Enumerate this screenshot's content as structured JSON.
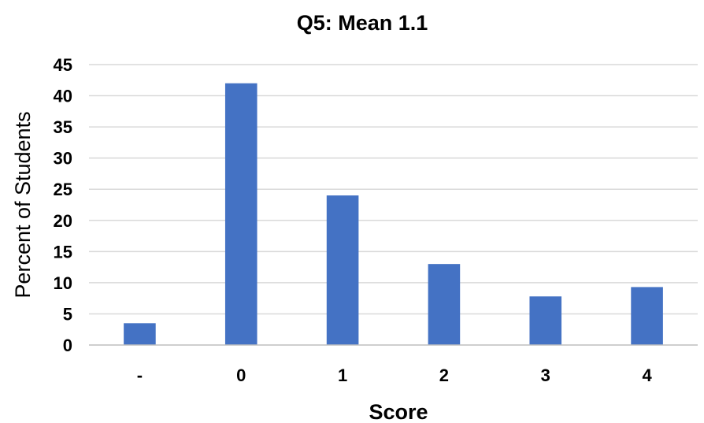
{
  "chart_data": {
    "type": "bar",
    "title": "Q5:  Mean 1.1",
    "xlabel": "Score",
    "ylabel": "Percent of Students",
    "categories": [
      "-",
      "0",
      "1",
      "2",
      "3",
      "4"
    ],
    "values": [
      3.5,
      42,
      24,
      13,
      7.8,
      9.3
    ],
    "ylim": [
      0,
      45
    ],
    "yticks": [
      0,
      5,
      10,
      15,
      20,
      25,
      30,
      35,
      40,
      45
    ],
    "grid": true,
    "legend": "none",
    "bar_color": "#4472c4"
  }
}
